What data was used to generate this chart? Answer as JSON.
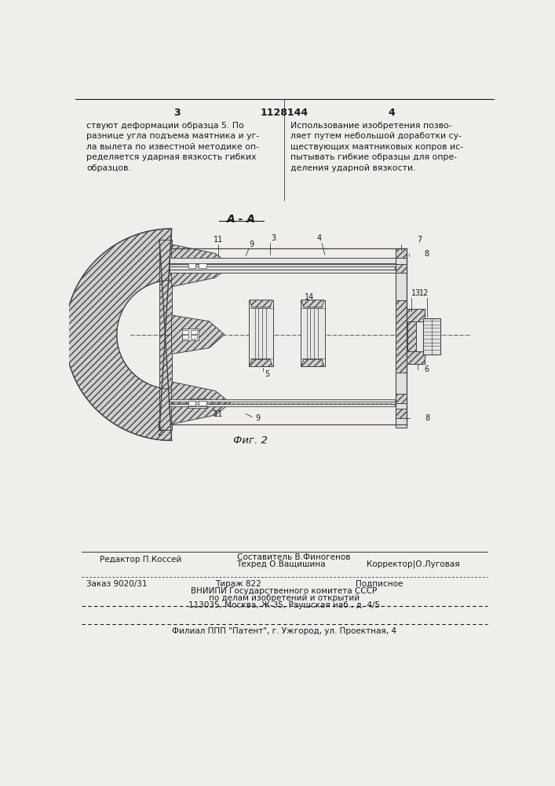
{
  "page_number_left": "3",
  "page_number_center": "1128144",
  "page_number_right": "4",
  "text_left": "ствуют деформации образца 5. По\nразнице угла подъема маятника и уг-\nла вылета по известной методике оп-\nределяется ударная вязкость гибких\nобразцов.",
  "text_right": "Использование изобретения позво-\nляет путем небольшой доработки су-\nществующих маятниковых копров ис-\nпытывать гибкие образцы для опре-\nделения ударной вязкости.",
  "fig_label": "Фиг. 2",
  "section_label": "А - А",
  "editor_line": "Редактор П.Коссей",
  "composer_line1": "Составитель В.Финогенов",
  "techred_line": "Техред О.Ващишина",
  "corrector_line": "Корректор|О.Луговая",
  "order_line": "Заказ 9020/31",
  "tirage_line": "Тираж 822",
  "podpisnoe_line": "Подписное",
  "vniipи_line1": "ВНИИПИ Государственного комитета СССР",
  "vniipи_line2": "по делам изобретений и открытий",
  "vniipи_line3": "113035, Москва, Ж-35, Раушская наб., д. 4/5",
  "filial_line": "Филиал ППП \"Патент\", г. Ужгород, ул. Проектная, 4",
  "bg_color": "#f0eeea",
  "text_color": "#1a1a1a"
}
